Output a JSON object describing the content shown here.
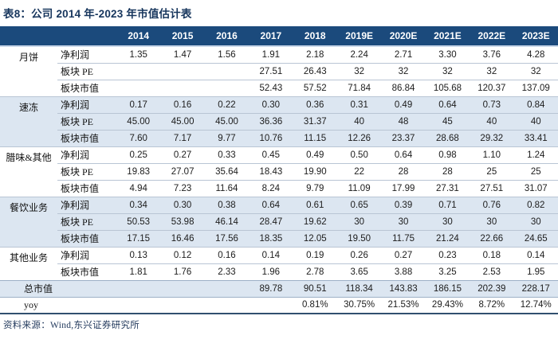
{
  "title": "表8：公司 2014 年-2023 年市值估计表",
  "source_note": "资料来源：Wind,东兴证券研究所",
  "colors": {
    "header_bg": "#1b4a7c",
    "header_text": "#ffffff",
    "shaded_row_bg": "#dce6f1",
    "title_text": "#17365d",
    "row_divider": "#b9c5d4",
    "table_bottom_border": "#31506f"
  },
  "table": {
    "year_columns": [
      "2014",
      "2015",
      "2016",
      "2017",
      "2018",
      "2019E",
      "2020E",
      "2021E",
      "2022E",
      "2023E"
    ],
    "groups": [
      {
        "name": "月饼",
        "shaded": false,
        "rows": [
          {
            "label": "净利润",
            "values": [
              "1.35",
              "1.47",
              "1.56",
              "1.91",
              "2.18",
              "2.24",
              "2.71",
              "3.30",
              "3.76",
              "4.28"
            ]
          },
          {
            "label": "板块 PE",
            "values": [
              "",
              "",
              "",
              "27.51",
              "26.43",
              "32",
              "32",
              "32",
              "32",
              "32"
            ]
          },
          {
            "label": "板块市值",
            "values": [
              "",
              "",
              "",
              "52.43",
              "57.52",
              "71.84",
              "86.84",
              "105.68",
              "120.37",
              "137.09"
            ]
          }
        ]
      },
      {
        "name": "速冻",
        "shaded": true,
        "rows": [
          {
            "label": "净利润",
            "values": [
              "0.17",
              "0.16",
              "0.22",
              "0.30",
              "0.36",
              "0.31",
              "0.49",
              "0.64",
              "0.73",
              "0.84"
            ]
          },
          {
            "label": "板块 PE",
            "values": [
              "45.00",
              "45.00",
              "45.00",
              "36.36",
              "31.37",
              "40",
              "48",
              "45",
              "40",
              "40"
            ]
          },
          {
            "label": "板块市值",
            "values": [
              "7.60",
              "7.17",
              "9.77",
              "10.76",
              "11.15",
              "12.26",
              "23.37",
              "28.68",
              "29.32",
              "33.41"
            ]
          }
        ]
      },
      {
        "name": "腊味&其他",
        "shaded": false,
        "rows": [
          {
            "label": "净利润",
            "values": [
              "0.25",
              "0.27",
              "0.33",
              "0.45",
              "0.49",
              "0.50",
              "0.64",
              "0.98",
              "1.10",
              "1.24"
            ]
          },
          {
            "label": "板块 PE",
            "values": [
              "19.83",
              "27.07",
              "35.64",
              "18.43",
              "19.90",
              "22",
              "28",
              "28",
              "25",
              "25"
            ]
          },
          {
            "label": "板块市值",
            "values": [
              "4.94",
              "7.23",
              "11.64",
              "8.24",
              "9.79",
              "11.09",
              "17.99",
              "27.31",
              "27.51",
              "31.07"
            ]
          }
        ]
      },
      {
        "name": "餐饮业务",
        "shaded": true,
        "rows": [
          {
            "label": "净利润",
            "values": [
              "0.34",
              "0.30",
              "0.38",
              "0.64",
              "0.61",
              "0.65",
              "0.39",
              "0.71",
              "0.76",
              "0.82"
            ]
          },
          {
            "label": "板块 PE",
            "values": [
              "50.53",
              "53.98",
              "46.14",
              "28.47",
              "19.62",
              "30",
              "30",
              "30",
              "30",
              "30"
            ]
          },
          {
            "label": "板块市值",
            "values": [
              "17.15",
              "16.46",
              "17.56",
              "18.35",
              "12.05",
              "19.50",
              "11.75",
              "21.24",
              "22.66",
              "24.65"
            ]
          }
        ]
      },
      {
        "name": "其他业务",
        "shaded": false,
        "rows": [
          {
            "label": "净利润",
            "values": [
              "0.13",
              "0.12",
              "0.16",
              "0.14",
              "0.19",
              "0.26",
              "0.27",
              "0.23",
              "0.18",
              "0.14"
            ]
          },
          {
            "label": "板块市值",
            "values": [
              "1.81",
              "1.76",
              "2.33",
              "1.96",
              "2.78",
              "3.65",
              "3.88",
              "3.25",
              "2.53",
              "1.95"
            ]
          }
        ]
      }
    ],
    "summary_rows": [
      {
        "label": "总市值",
        "shaded": true,
        "values": [
          "",
          "",
          "",
          "89.78",
          "90.51",
          "118.34",
          "143.83",
          "186.15",
          "202.39",
          "228.17"
        ]
      },
      {
        "label": "yoy",
        "shaded": false,
        "values": [
          "",
          "",
          "",
          "",
          "0.81%",
          "30.75%",
          "21.53%",
          "29.43%",
          "8.72%",
          "12.74%"
        ]
      }
    ]
  }
}
